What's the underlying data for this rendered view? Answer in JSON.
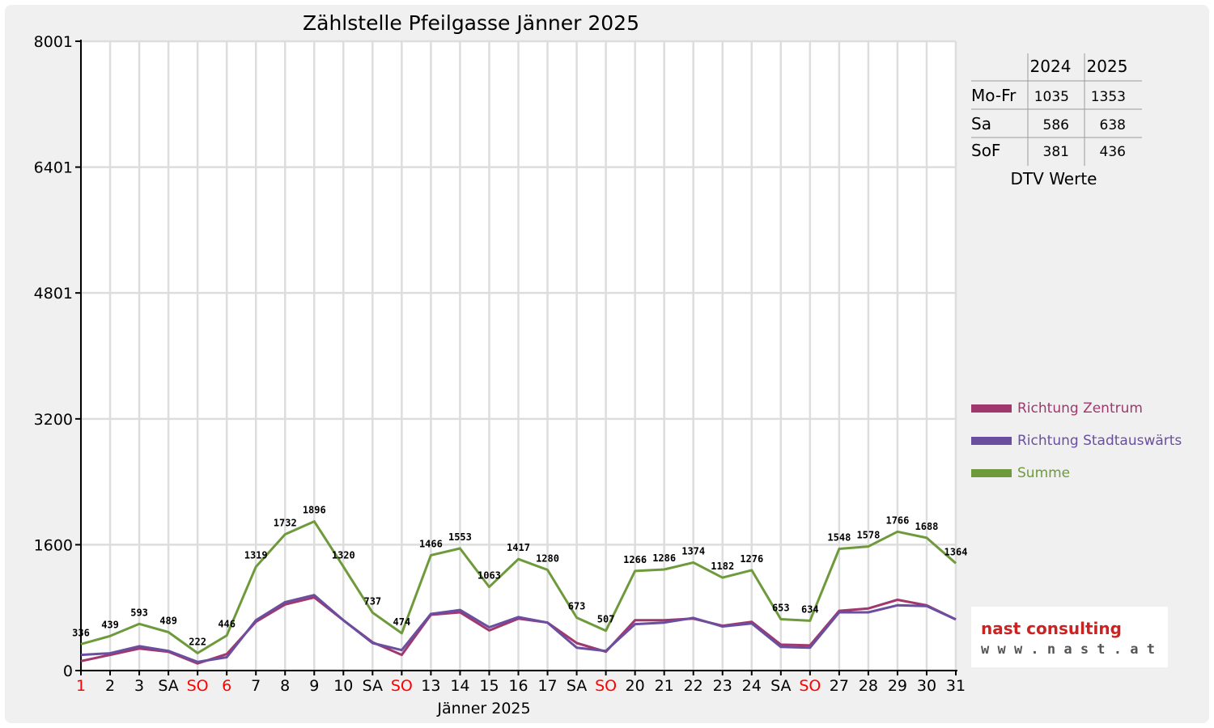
{
  "chart_data": {
    "type": "line",
    "title": "Zählstelle Pfeilgasse Jänner 2025",
    "xlabel": "Jänner 2025",
    "ylabel": "",
    "ylim": [
      0,
      8001
    ],
    "yticks": [
      "0",
      "1600",
      "3200",
      "4801",
      "6401",
      "8001"
    ],
    "ytick_values": [
      0,
      1600,
      3200,
      4801,
      6401,
      8001
    ],
    "grid": true,
    "categories": [
      "1",
      "2",
      "3",
      "SA",
      "SO",
      "6",
      "7",
      "8",
      "9",
      "10",
      "SA",
      "SO",
      "13",
      "14",
      "15",
      "16",
      "17",
      "SA",
      "SO",
      "20",
      "21",
      "22",
      "23",
      "24",
      "SA",
      "SO",
      "27",
      "28",
      "29",
      "30",
      "31"
    ],
    "category_colors": [
      "#ff0000",
      "#000000",
      "#000000",
      "#000000",
      "#ff0000",
      "#ff0000",
      "#000000",
      "#000000",
      "#000000",
      "#000000",
      "#000000",
      "#ff0000",
      "#000000",
      "#000000",
      "#000000",
      "#000000",
      "#000000",
      "#000000",
      "#ff0000",
      "#000000",
      "#000000",
      "#000000",
      "#000000",
      "#000000",
      "#000000",
      "#ff0000",
      "#000000",
      "#000000",
      "#000000",
      "#000000",
      "#000000"
    ],
    "series": [
      {
        "name": "Richtung Zentrum",
        "color": "#a0386e",
        "values": [
          120,
          200,
          280,
          240,
          90,
          210,
          620,
          840,
          930,
          640,
          360,
          200,
          710,
          740,
          510,
          660,
          610,
          350,
          240,
          640,
          640,
          660,
          570,
          620,
          330,
          320,
          760,
          790,
          900,
          830,
          650
        ]
      },
      {
        "name": "Richtung Stadtauswärts",
        "color": "#6a4ea0",
        "values": [
          200,
          220,
          310,
          250,
          110,
          170,
          640,
          870,
          960,
          640,
          350,
          260,
          720,
          770,
          550,
          680,
          610,
          290,
          250,
          590,
          610,
          670,
          560,
          600,
          300,
          290,
          740,
          740,
          830,
          820,
          650
        ]
      },
      {
        "name": "Summe",
        "color": "#6e9a3c",
        "values": [
          336,
          439,
          593,
          489,
          222,
          446,
          1319,
          1732,
          1896,
          1320,
          737,
          474,
          1466,
          1553,
          1063,
          1417,
          1280,
          673,
          507,
          1266,
          1286,
          1374,
          1182,
          1276,
          653,
          634,
          1548,
          1578,
          1766,
          1688,
          1364
        ]
      }
    ],
    "data_labels": [
      "336",
      "439",
      "593",
      "489",
      "222",
      "446",
      "1319",
      "1732",
      "1896",
      "1320",
      "737",
      "474",
      "1466",
      "1553",
      "1063",
      "1417",
      "1280",
      "673",
      "507",
      "1266",
      "1286",
      "1374",
      "1182",
      "1276",
      "653",
      "634",
      "1548",
      "1578",
      "1766",
      "1688",
      "1364"
    ]
  },
  "dtv_table": {
    "headers": [
      "",
      "2024",
      "2025"
    ],
    "rows": [
      {
        "label": "Mo-Fr",
        "v2024": "1035",
        "v2025": "1353"
      },
      {
        "label": "Sa",
        "v2024": "586",
        "v2025": "638"
      },
      {
        "label": "SoF",
        "v2024": "381",
        "v2025": "436"
      }
    ],
    "caption": "DTV Werte"
  },
  "legend": [
    {
      "label": "Richtung Zentrum",
      "color": "#a0386e"
    },
    {
      "label": "Richtung Stadtauswärts",
      "color": "#6a4ea0"
    },
    {
      "label": "Summe",
      "color": "#6e9a3c"
    }
  ],
  "logo": {
    "main": "nast consulting",
    "sub": "w w w . n a s t . a t"
  }
}
